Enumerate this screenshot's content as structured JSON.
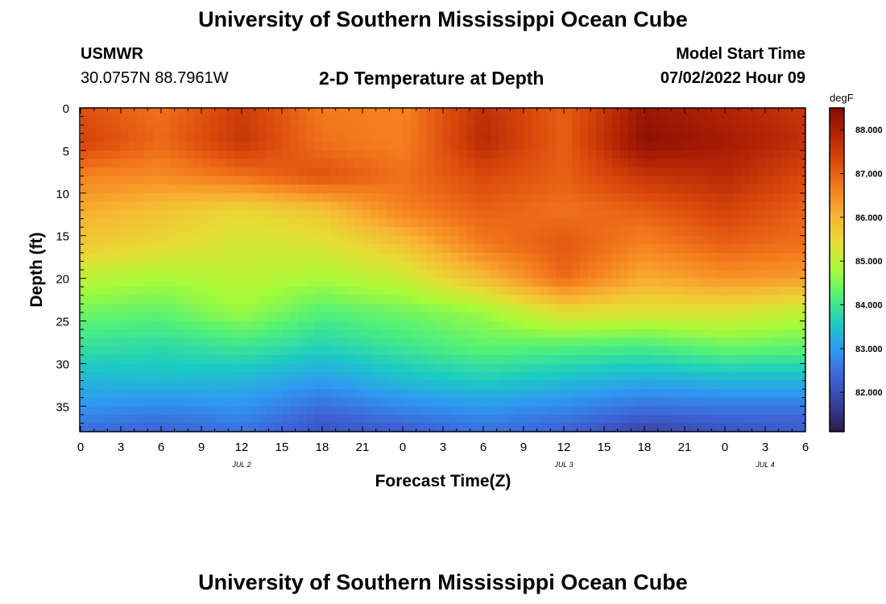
{
  "page": {
    "title": "University of Southern Mississippi Ocean Cube",
    "footer_title": "University of Southern Mississippi Ocean Cube",
    "station": "USMWR",
    "coordinates": "30.0757N  88.7961W",
    "subtitle": "2-D Temperature at Depth",
    "model_start_label": "Model Start Time",
    "model_start_value": "07/02/2022 Hour 09"
  },
  "chart_data": {
    "type": "heatmap",
    "title": "2-D Temperature at Depth",
    "xlabel": "Forecast Time(Z)",
    "ylabel": "Depth (ft)",
    "x_tick_labels": [
      "0",
      "3",
      "6",
      "9",
      "12",
      "15",
      "18",
      "21",
      "0",
      "3",
      "6",
      "9",
      "12",
      "15",
      "18",
      "21",
      "0",
      "3",
      "6"
    ],
    "x_range_hours": [
      0,
      54
    ],
    "date_labels": [
      {
        "label": "JUL 2",
        "hour": 12
      },
      {
        "label": "JUL 3",
        "hour": 36
      },
      {
        "label": "JUL 4",
        "hour": 51
      }
    ],
    "y_tick_labels": [
      "0",
      "5",
      "10",
      "15",
      "20",
      "25",
      "30",
      "35"
    ],
    "ylim": [
      0,
      38
    ],
    "colorbar": {
      "unit": "degF",
      "min": 81.1,
      "max": 88.5,
      "tick_values": [
        88,
        87,
        86,
        85,
        84,
        83,
        82
      ],
      "tick_labels": [
        "88.000",
        "87.000",
        "86.000",
        "85.000",
        "84.000",
        "83.000",
        "82.000"
      ],
      "colors": [
        "#2e1a49",
        "#373d9c",
        "#3e63d6",
        "#2f97f2",
        "#1ccbc4",
        "#4ff07a",
        "#a9fb37",
        "#e6de34",
        "#f8b232",
        "#f57e1e",
        "#dc4a0c",
        "#b52405",
        "#850c02"
      ]
    },
    "model_times_hours": [
      0,
      6,
      12,
      18,
      24,
      30,
      36,
      42,
      48,
      54
    ],
    "model_depths_ft": [
      0,
      4,
      8,
      12,
      16,
      20,
      24,
      28,
      32,
      36,
      38
    ],
    "temperature_degF": [
      [
        87.2,
        86.8,
        87.5,
        86.7,
        86.6,
        87.7,
        87.0,
        88.2,
        87.9,
        87.6
      ],
      [
        87.4,
        86.9,
        87.6,
        86.8,
        86.6,
        87.8,
        87.0,
        88.4,
        88.1,
        87.7
      ],
      [
        86.6,
        86.5,
        86.8,
        87.2,
        86.8,
        87.3,
        87.0,
        87.6,
        87.8,
        87.3
      ],
      [
        86.1,
        85.8,
        85.5,
        85.8,
        86.6,
        87.0,
        86.8,
        87.0,
        87.4,
        87.0
      ],
      [
        85.7,
        85.5,
        85.2,
        85.3,
        85.8,
        86.7,
        87.1,
        86.6,
        87.0,
        86.8
      ],
      [
        85.0,
        84.8,
        85.0,
        84.8,
        85.1,
        85.9,
        86.9,
        86.1,
        86.4,
        86.3
      ],
      [
        84.4,
        84.3,
        84.7,
        84.2,
        84.4,
        84.7,
        85.4,
        85.3,
        85.3,
        85.0
      ],
      [
        83.9,
        83.8,
        84.0,
        83.7,
        84.0,
        84.3,
        84.2,
        84.1,
        84.4,
        84.3
      ],
      [
        83.3,
        83.4,
        83.3,
        83.0,
        83.4,
        83.6,
        83.4,
        83.2,
        83.3,
        83.3
      ],
      [
        82.8,
        82.6,
        82.8,
        82.3,
        82.6,
        82.8,
        82.6,
        82.3,
        82.4,
        82.4
      ],
      [
        82.4,
        82.3,
        82.5,
        82.1,
        82.2,
        82.5,
        82.3,
        81.8,
        82.1,
        82.2
      ]
    ]
  }
}
